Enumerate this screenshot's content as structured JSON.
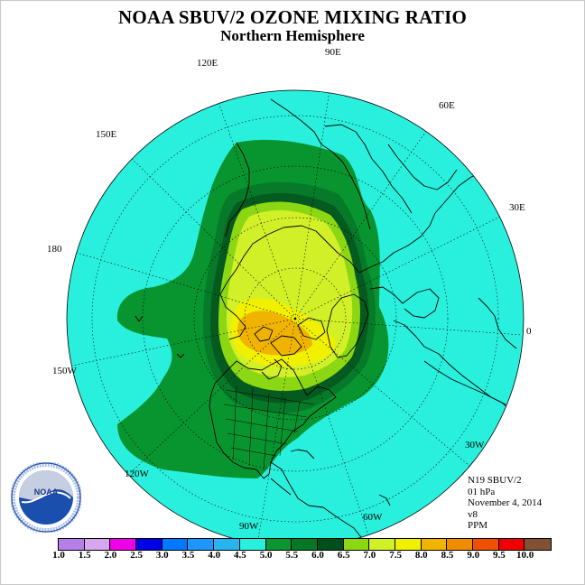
{
  "title": "NOAA SBUV/2 OZONE MIXING RATIO",
  "subtitle": "Northern Hemisphere",
  "longitude_labels": {
    "lon_90E": "90E",
    "lon_60E": "60E",
    "lon_30E": "30E",
    "lon_0": "0",
    "lon_30W": "30W",
    "lon_60W": "60W",
    "lon_90W": "90W",
    "lon_120W": "120W",
    "lon_150W": "150W",
    "lon_180": "180",
    "lon_150E": "150E",
    "lon_120E": "120E"
  },
  "info": {
    "satellite": "N19 SBUV/2",
    "level": "01 hPa",
    "date": "November 4, 2014",
    "version": "v8",
    "units": "PPM"
  },
  "colorbar": {
    "ticks": [
      "1.0",
      "1.5",
      "2.0",
      "2.5",
      "3.0",
      "3.5",
      "4.0",
      "4.5",
      "5.0",
      "5.5",
      "6.0",
      "6.5",
      "7.0",
      "7.5",
      "8.0",
      "8.5",
      "9.0",
      "9.5",
      "10.0"
    ],
    "colors": [
      "#b57ee8",
      "#d7a6ee",
      "#f000e6",
      "#0000e6",
      "#0078ff",
      "#1e96ff",
      "#28b4f0",
      "#28f0dc",
      "#0a9632",
      "#057828",
      "#00501e",
      "#8cd714",
      "#d2f028",
      "#f0f000",
      "#f0b400",
      "#f08c00",
      "#f05000",
      "#f00000",
      "#825032"
    ]
  },
  "map_colors": {
    "ocean": "#29f0dd",
    "level_5_0": "#089530",
    "level_5_5": "#067a28",
    "level_6_0": "#045a1f",
    "level_6_5": "#8cd714",
    "level_7_0": "#d2f028",
    "level_7_5": "#f0f000",
    "level_8_0": "#f0b400"
  }
}
